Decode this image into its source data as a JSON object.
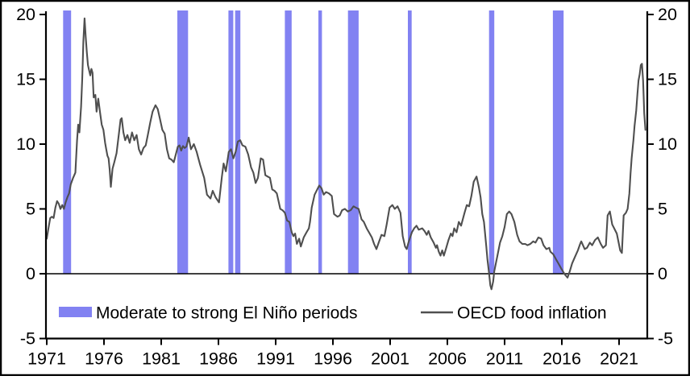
{
  "colors": {
    "background": "#ffffff",
    "border": "#000000",
    "axis": "#000000",
    "band": "#8282f2",
    "line": "#4f4f4f"
  },
  "chart_data": {
    "type": "line",
    "title": "",
    "x_axis": {
      "tick_years": [
        1971,
        1976,
        1981,
        1986,
        1991,
        1996,
        2001,
        2006,
        2011,
        2016,
        2021
      ],
      "range": [
        1971,
        2023.3
      ]
    },
    "y_axis": {
      "ticks": [
        -5,
        0,
        5,
        10,
        15,
        20
      ],
      "range": [
        -5,
        20
      ],
      "sides": "both",
      "zero_line": true
    },
    "el_nino_periods": [
      [
        1972.43,
        1973.13
      ],
      [
        1982.41,
        1983.35
      ],
      [
        1986.87,
        1987.29
      ],
      [
        1987.46,
        1987.92
      ],
      [
        1991.8,
        1992.39
      ],
      [
        1994.73,
        1995.04
      ],
      [
        1997.32,
        1998.25
      ],
      [
        2002.55,
        2002.88
      ],
      [
        2009.64,
        2010.1
      ],
      [
        2015.22,
        2016.16
      ]
    ],
    "series": [
      {
        "name": "OECD food inflation",
        "points": [
          [
            1971.0,
            2.7
          ],
          [
            1971.15,
            3.5
          ],
          [
            1971.3,
            4.3
          ],
          [
            1971.45,
            4.4
          ],
          [
            1971.6,
            4.3
          ],
          [
            1971.75,
            5.1
          ],
          [
            1971.9,
            5.6
          ],
          [
            1972.05,
            5.4
          ],
          [
            1972.2,
            5.0
          ],
          [
            1972.35,
            5.3
          ],
          [
            1972.5,
            5.0
          ],
          [
            1972.65,
            5.5
          ],
          [
            1972.8,
            5.9
          ],
          [
            1972.95,
            6.2
          ],
          [
            1973.1,
            6.9
          ],
          [
            1973.3,
            7.4
          ],
          [
            1973.5,
            7.8
          ],
          [
            1973.65,
            10.3
          ],
          [
            1973.75,
            11.5
          ],
          [
            1973.85,
            10.9
          ],
          [
            1974.0,
            12.9
          ],
          [
            1974.1,
            15.0
          ],
          [
            1974.15,
            16.4
          ],
          [
            1974.2,
            17.9
          ],
          [
            1974.3,
            19.7
          ],
          [
            1974.4,
            18.3
          ],
          [
            1974.5,
            17.1
          ],
          [
            1974.6,
            16.1
          ],
          [
            1974.7,
            15.7
          ],
          [
            1974.8,
            15.3
          ],
          [
            1974.9,
            15.8
          ],
          [
            1975.0,
            15.5
          ],
          [
            1975.1,
            13.6
          ],
          [
            1975.25,
            13.8
          ],
          [
            1975.35,
            12.5
          ],
          [
            1975.5,
            13.5
          ],
          [
            1975.65,
            12.5
          ],
          [
            1975.8,
            11.5
          ],
          [
            1975.95,
            11.1
          ],
          [
            1976.1,
            10.1
          ],
          [
            1976.2,
            9.6
          ],
          [
            1976.3,
            9.1
          ],
          [
            1976.4,
            8.9
          ],
          [
            1976.5,
            8.0
          ],
          [
            1976.6,
            6.7
          ],
          [
            1976.75,
            8.1
          ],
          [
            1976.9,
            8.6
          ],
          [
            1977.1,
            9.3
          ],
          [
            1977.3,
            10.8
          ],
          [
            1977.45,
            11.9
          ],
          [
            1977.55,
            12.0
          ],
          [
            1977.7,
            10.9
          ],
          [
            1977.85,
            10.3
          ],
          [
            1978.05,
            10.7
          ],
          [
            1978.25,
            10.1
          ],
          [
            1978.45,
            10.9
          ],
          [
            1978.65,
            10.3
          ],
          [
            1978.85,
            10.7
          ],
          [
            1979.05,
            9.6
          ],
          [
            1979.25,
            9.2
          ],
          [
            1979.45,
            9.7
          ],
          [
            1979.65,
            9.9
          ],
          [
            1979.85,
            10.8
          ],
          [
            1980.05,
            11.7
          ],
          [
            1980.25,
            12.5
          ],
          [
            1980.5,
            13.0
          ],
          [
            1980.7,
            12.7
          ],
          [
            1980.9,
            11.9
          ],
          [
            1981.1,
            11.1
          ],
          [
            1981.3,
            10.8
          ],
          [
            1981.5,
            9.6
          ],
          [
            1981.7,
            8.9
          ],
          [
            1981.9,
            8.8
          ],
          [
            1982.1,
            8.6
          ],
          [
            1982.3,
            9.3
          ],
          [
            1982.45,
            9.8
          ],
          [
            1982.6,
            9.9
          ],
          [
            1982.75,
            9.5
          ],
          [
            1982.9,
            9.85
          ],
          [
            1983.05,
            9.7
          ],
          [
            1983.2,
            9.8
          ],
          [
            1983.4,
            10.5
          ],
          [
            1983.6,
            9.6
          ],
          [
            1983.85,
            10.0
          ],
          [
            1984.1,
            9.4
          ],
          [
            1984.25,
            8.9
          ],
          [
            1984.4,
            8.4
          ],
          [
            1984.75,
            7.4
          ],
          [
            1985.0,
            6.1
          ],
          [
            1985.3,
            5.8
          ],
          [
            1985.5,
            6.4
          ],
          [
            1985.75,
            5.9
          ],
          [
            1986.05,
            5.5
          ],
          [
            1986.3,
            7.5
          ],
          [
            1986.45,
            8.5
          ],
          [
            1986.65,
            7.9
          ],
          [
            1986.9,
            9.4
          ],
          [
            1987.1,
            9.6
          ],
          [
            1987.3,
            8.9
          ],
          [
            1987.5,
            9.4
          ],
          [
            1987.7,
            10.2
          ],
          [
            1987.9,
            10.3
          ],
          [
            1988.1,
            9.9
          ],
          [
            1988.35,
            9.8
          ],
          [
            1988.6,
            9.2
          ],
          [
            1988.85,
            8.2
          ],
          [
            1989.05,
            7.8
          ],
          [
            1989.25,
            7.0
          ],
          [
            1989.45,
            7.4
          ],
          [
            1989.7,
            8.9
          ],
          [
            1989.9,
            8.8
          ],
          [
            1990.1,
            7.6
          ],
          [
            1990.3,
            7.5
          ],
          [
            1990.5,
            7.4
          ],
          [
            1990.7,
            6.5
          ],
          [
            1990.9,
            6.4
          ],
          [
            1991.1,
            6.2
          ],
          [
            1991.4,
            5.0
          ],
          [
            1991.6,
            4.9
          ],
          [
            1991.8,
            4.7
          ],
          [
            1992.0,
            4.1
          ],
          [
            1992.2,
            4.0
          ],
          [
            1992.4,
            3.2
          ],
          [
            1992.55,
            2.9
          ],
          [
            1992.7,
            3.1
          ],
          [
            1992.85,
            2.3
          ],
          [
            1993.05,
            2.7
          ],
          [
            1993.2,
            2.1
          ],
          [
            1993.45,
            2.8
          ],
          [
            1993.7,
            3.2
          ],
          [
            1993.9,
            3.5
          ],
          [
            1994.0,
            4.0
          ],
          [
            1994.15,
            5.1
          ],
          [
            1994.4,
            6.1
          ],
          [
            1994.8,
            6.8
          ],
          [
            1995.0,
            6.6
          ],
          [
            1995.2,
            6.1
          ],
          [
            1995.4,
            6.3
          ],
          [
            1995.65,
            6.2
          ],
          [
            1995.9,
            6.0
          ],
          [
            1996.1,
            4.6
          ],
          [
            1996.4,
            4.4
          ],
          [
            1996.6,
            4.5
          ],
          [
            1996.8,
            4.9
          ],
          [
            1997.05,
            5.0
          ],
          [
            1997.3,
            4.8
          ],
          [
            1997.55,
            4.9
          ],
          [
            1997.8,
            5.2
          ],
          [
            1998.0,
            5.1
          ],
          [
            1998.25,
            5.0
          ],
          [
            1998.5,
            4.2
          ],
          [
            1998.7,
            4.0
          ],
          [
            1998.95,
            3.5
          ],
          [
            1999.15,
            3.2
          ],
          [
            1999.4,
            2.8
          ],
          [
            1999.6,
            2.3
          ],
          [
            1999.8,
            1.9
          ],
          [
            2000.0,
            2.4
          ],
          [
            2000.25,
            3.0
          ],
          [
            2000.5,
            2.9
          ],
          [
            2000.7,
            3.8
          ],
          [
            2000.95,
            5.1
          ],
          [
            2001.2,
            5.3
          ],
          [
            2001.4,
            5.0
          ],
          [
            2001.65,
            5.2
          ],
          [
            2001.9,
            4.7
          ],
          [
            2002.1,
            2.9
          ],
          [
            2002.3,
            2.1
          ],
          [
            2002.45,
            1.9
          ],
          [
            2002.6,
            2.4
          ],
          [
            2002.75,
            2.8
          ],
          [
            2002.9,
            3.2
          ],
          [
            2003.1,
            3.5
          ],
          [
            2003.3,
            3.7
          ],
          [
            2003.5,
            3.4
          ],
          [
            2003.8,
            3.5
          ],
          [
            2004.0,
            3.3
          ],
          [
            2004.2,
            3.0
          ],
          [
            2004.35,
            3.3
          ],
          [
            2004.55,
            2.8
          ],
          [
            2004.8,
            2.4
          ],
          [
            2005.0,
            2.0
          ],
          [
            2005.1,
            2.2
          ],
          [
            2005.25,
            1.7
          ],
          [
            2005.4,
            1.4
          ],
          [
            2005.55,
            1.8
          ],
          [
            2005.7,
            1.4
          ],
          [
            2005.9,
            2.0
          ],
          [
            2006.1,
            2.6
          ],
          [
            2006.3,
            3.1
          ],
          [
            2006.45,
            2.9
          ],
          [
            2006.6,
            3.5
          ],
          [
            2006.8,
            3.2
          ],
          [
            2007.0,
            4.0
          ],
          [
            2007.2,
            3.7
          ],
          [
            2007.5,
            4.7
          ],
          [
            2007.7,
            5.3
          ],
          [
            2007.9,
            5.2
          ],
          [
            2008.1,
            6.0
          ],
          [
            2008.3,
            7.1
          ],
          [
            2008.55,
            7.5
          ],
          [
            2008.75,
            6.7
          ],
          [
            2008.9,
            5.9
          ],
          [
            2009.05,
            4.6
          ],
          [
            2009.2,
            4.0
          ],
          [
            2009.4,
            2.1
          ],
          [
            2009.5,
            1.1
          ],
          [
            2009.65,
            0.0
          ],
          [
            2009.75,
            -0.9
          ],
          [
            2009.85,
            -1.2
          ],
          [
            2010.0,
            -0.6
          ],
          [
            2010.1,
            0.2
          ],
          [
            2010.35,
            1.3
          ],
          [
            2010.6,
            2.4
          ],
          [
            2010.8,
            2.9
          ],
          [
            2011.0,
            3.6
          ],
          [
            2011.2,
            4.6
          ],
          [
            2011.4,
            4.8
          ],
          [
            2011.6,
            4.6
          ],
          [
            2011.85,
            4.0
          ],
          [
            2012.1,
            3.0
          ],
          [
            2012.3,
            2.5
          ],
          [
            2012.55,
            2.3
          ],
          [
            2012.8,
            2.3
          ],
          [
            2013.0,
            2.2
          ],
          [
            2013.25,
            2.3
          ],
          [
            2013.5,
            2.5
          ],
          [
            2013.7,
            2.4
          ],
          [
            2013.95,
            2.8
          ],
          [
            2014.2,
            2.7
          ],
          [
            2014.4,
            2.2
          ],
          [
            2014.65,
            1.9
          ],
          [
            2014.9,
            2.0
          ],
          [
            2015.0,
            1.7
          ],
          [
            2015.25,
            1.5
          ],
          [
            2015.5,
            1.1
          ],
          [
            2015.7,
            0.8
          ],
          [
            2015.95,
            0.4
          ],
          [
            2016.15,
            0.1
          ],
          [
            2016.3,
            -0.1
          ],
          [
            2016.5,
            -0.3
          ],
          [
            2016.7,
            0.2
          ],
          [
            2016.9,
            0.8
          ],
          [
            2017.15,
            1.3
          ],
          [
            2017.4,
            1.8
          ],
          [
            2017.6,
            2.3
          ],
          [
            2017.7,
            2.5
          ],
          [
            2018.0,
            1.9
          ],
          [
            2018.2,
            2.0
          ],
          [
            2018.45,
            2.4
          ],
          [
            2018.65,
            2.2
          ],
          [
            2018.9,
            2.6
          ],
          [
            2019.15,
            2.8
          ],
          [
            2019.4,
            2.3
          ],
          [
            2019.6,
            2.0
          ],
          [
            2019.85,
            2.2
          ],
          [
            2020.0,
            4.5
          ],
          [
            2020.2,
            4.8
          ],
          [
            2020.4,
            3.8
          ],
          [
            2020.8,
            3.1
          ],
          [
            2021.1,
            1.8
          ],
          [
            2021.25,
            1.6
          ],
          [
            2021.4,
            4.5
          ],
          [
            2021.6,
            4.7
          ],
          [
            2021.75,
            5.0
          ],
          [
            2021.9,
            6.2
          ],
          [
            2022.0,
            7.7
          ],
          [
            2022.1,
            8.9
          ],
          [
            2022.25,
            10.3
          ],
          [
            2022.35,
            11.4
          ],
          [
            2022.5,
            12.6
          ],
          [
            2022.6,
            13.8
          ],
          [
            2022.7,
            14.9
          ],
          [
            2022.8,
            15.4
          ],
          [
            2022.9,
            16.1
          ],
          [
            2023.0,
            16.2
          ],
          [
            2023.1,
            14.9
          ],
          [
            2023.15,
            13.7
          ],
          [
            2023.2,
            12.4
          ],
          [
            2023.3,
            11.1
          ]
        ]
      }
    ],
    "legend": [
      {
        "swatch": "band",
        "label": "Moderate to strong El Niño periods"
      },
      {
        "swatch": "line",
        "label": "OECD food inflation"
      }
    ]
  }
}
